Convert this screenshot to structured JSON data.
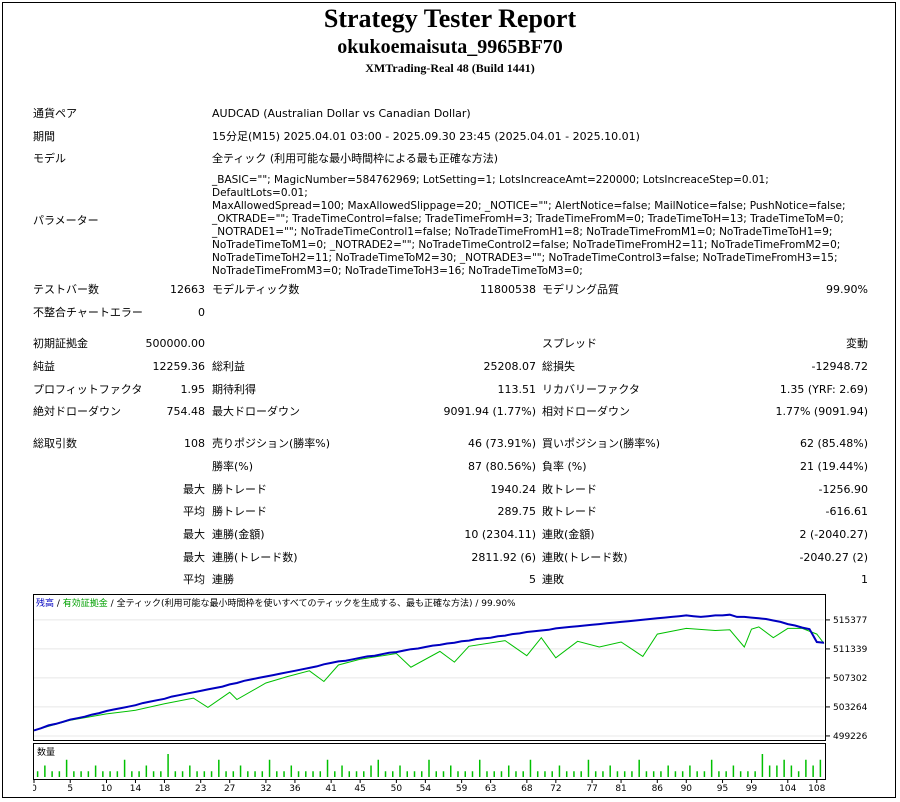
{
  "header": {
    "title": "Strategy Tester Report",
    "account": "okukoemaisuta_9965BF70",
    "server": "XMTrading-Real 48 (Build 1441)"
  },
  "info": {
    "pair_label": "通貨ペア",
    "pair_value": "AUDCAD (Australian Dollar vs Canadian Dollar)",
    "period_label": "期間",
    "period_value": "15分足(M15) 2025.04.01 03:00 - 2025.09.30 23:45 (2025.04.01 - 2025.10.01)",
    "model_label": "モデル",
    "model_value": "全ティック (利用可能な最小時間枠による最も正確な方法)",
    "params_label": "パラメーター",
    "params_value": "_BASIC=\"\"; MagicNumber=584762969; LotSetting=1; LotsIncreaceAmt=220000; LotsIncreaceStep=0.01; DefaultLots=0.01;\nMaxAllowedSpread=100; MaxAllowedSlippage=20; _NOTICE=\"\"; AlertNotice=false; MailNotice=false; PushNotice=false;\n_OKTRADE=\"\"; TradeTimeControl=false; TradeTimeFromH=3; TradeTimeFromM=0; TradeTimeToH=13; TradeTimeToM=0;\n_NOTRADE1=\"\"; NoTradeTimeControl1=false; NoTradeTimeFromH1=8; NoTradeTimeFromM1=0; NoTradeTimeToH1=9;\nNoTradeTimeToM1=0; _NOTRADE2=\"\"; NoTradeTimeControl2=false; NoTradeTimeFromH2=11; NoTradeTimeFromM2=0;\nNoTradeTimeToH2=11; NoTradeTimeToM2=30; _NOTRADE3=\"\"; NoTradeTimeControl3=false; NoTradeTimeFromH3=15;\nNoTradeTimeFromM3=0; NoTradeTimeToH3=16; NoTradeTimeToM3=0;"
  },
  "stats": {
    "bars_label": "テストバー数",
    "bars_value": "12663",
    "ticks_label": "モデルティック数",
    "ticks_value": "11800538",
    "quality_label": "モデリング品質",
    "quality_value": "99.90%",
    "mismatch_label": "不整合チャートエラー",
    "mismatch_value": "0",
    "deposit_label": "初期証拠金",
    "deposit_value": "500000.00",
    "spread_label": "スプレッド",
    "spread_value": "変動",
    "net_label": "純益",
    "net_value": "12259.36",
    "gross_profit_label": "総利益",
    "gross_profit_value": "25208.07",
    "gross_loss_label": "総損失",
    "gross_loss_value": "-12948.72",
    "pf_label": "プロフィットファクタ",
    "pf_value": "1.95",
    "expected_label": "期待利得",
    "expected_value": "113.51",
    "recovery_label": "リカバリーファクタ",
    "recovery_value": "1.35 (YRF: 2.69)",
    "abs_dd_label": "絶対ドローダウン",
    "abs_dd_value": "754.48",
    "max_dd_label": "最大ドローダウン",
    "max_dd_value": "9091.94 (1.77%)",
    "rel_dd_label": "相対ドローダウン",
    "rel_dd_value": "1.77% (9091.94)",
    "total_trades_label": "総取引数",
    "total_trades_value": "108",
    "short_label": "売りポジション(勝率%)",
    "short_value": "46 (73.91%)",
    "long_label": "買いポジション(勝率%)",
    "long_value": "62 (85.48%)",
    "win_label": "勝率(%)",
    "win_value": "87 (80.56%)",
    "loss_label": "負率 (%)",
    "loss_value": "21 (19.44%)",
    "max_label": "最大",
    "avg_label": "平均",
    "largest_win_label": "勝トレード",
    "largest_win_value": "1940.24",
    "largest_loss_label": "敗トレード",
    "largest_loss_value": "-1256.90",
    "avg_win_label": "勝トレード",
    "avg_win_value": "289.75",
    "avg_loss_label": "敗トレード",
    "avg_loss_value": "-616.61",
    "max_consec_win_label": "連勝(金額)",
    "max_consec_win_value": "10 (2304.11)",
    "max_consec_loss_label": "連敗(金額)",
    "max_consec_loss_value": "2 (-2040.27)",
    "max_consec_profit_label": "連勝(トレード数)",
    "max_consec_profit_value": "2811.92 (6)",
    "max_consec_lossamt_label": "連敗(トレード数)",
    "max_consec_lossamt_value": "-2040.27 (2)",
    "avg_consec_win_label": "連勝",
    "avg_consec_win_value": "5",
    "avg_consec_loss_label": "連敗",
    "avg_consec_loss_value": "1"
  },
  "chart_data": {
    "type": "line",
    "legend": {
      "balance": "残高",
      "sep1": " / ",
      "equity": "有効証拠金",
      "sep2": " / ",
      "model": "全ティック(利用可能な最小時間枠を使いすべてのティックを生成する、最も正確な方法)",
      "sep3": " / ",
      "quality": "99.90%"
    },
    "volume_label": "数量",
    "y_ticks": [
      515377,
      511339,
      507302,
      503264,
      499226
    ],
    "ylim": [
      498800,
      516200
    ],
    "x_ticks": [
      0,
      5,
      10,
      14,
      18,
      23,
      27,
      32,
      36,
      41,
      45,
      50,
      54,
      59,
      63,
      68,
      72,
      77,
      81,
      86,
      90,
      95,
      99,
      104,
      108
    ],
    "xlim": [
      0,
      109
    ],
    "colors": {
      "balance": "#0000c0",
      "equity": "#00c000",
      "volume": "#00c000"
    },
    "series": [
      {
        "name": "残高",
        "x": [
          0,
          1,
          2,
          3,
          4,
          5,
          6,
          7,
          8,
          9,
          10,
          11,
          12,
          13,
          14,
          15,
          16,
          17,
          18,
          19,
          20,
          21,
          22,
          23,
          24,
          25,
          26,
          27,
          28,
          29,
          30,
          31,
          32,
          33,
          34,
          35,
          36,
          37,
          38,
          39,
          40,
          41,
          42,
          43,
          44,
          45,
          46,
          47,
          48,
          49,
          50,
          51,
          52,
          53,
          54,
          55,
          56,
          57,
          58,
          59,
          60,
          61,
          62,
          63,
          64,
          65,
          66,
          67,
          68,
          69,
          70,
          71,
          72,
          73,
          74,
          75,
          76,
          77,
          78,
          79,
          80,
          81,
          82,
          83,
          84,
          85,
          86,
          87,
          88,
          89,
          90,
          91,
          92,
          93,
          94,
          95,
          96,
          97,
          98,
          99,
          100,
          101,
          102,
          103,
          104,
          105,
          106,
          107,
          108,
          109
        ],
        "values": [
          500000,
          500300,
          500700,
          500900,
          501200,
          501500,
          501700,
          501900,
          502200,
          502400,
          502700,
          502900,
          503100,
          503300,
          503500,
          503800,
          504000,
          504200,
          504400,
          504700,
          504900,
          505100,
          505300,
          505500,
          505700,
          505900,
          506100,
          506400,
          506600,
          506900,
          507100,
          507300,
          507500,
          507700,
          507900,
          508100,
          508300,
          508500,
          508700,
          508900,
          509200,
          509400,
          509600,
          509700,
          509900,
          510100,
          510300,
          510400,
          510600,
          510800,
          510900,
          511100,
          511300,
          511400,
          511600,
          511800,
          511900,
          512100,
          512200,
          512400,
          512500,
          512700,
          512800,
          512900,
          513100,
          513200,
          513400,
          513500,
          513700,
          513800,
          513900,
          514000,
          514200,
          514300,
          514400,
          514500,
          514600,
          514700,
          514800,
          514900,
          515000,
          515100,
          515200,
          515300,
          515400,
          515500,
          515600,
          515700,
          515800,
          515900,
          516000,
          515900,
          515800,
          515900,
          516000,
          516000,
          516100,
          515800,
          515800,
          515700,
          515600,
          515500,
          515300,
          515100,
          514800,
          514600,
          514300,
          514100,
          512300,
          512200
        ]
      },
      {
        "name": "有効証拠金",
        "x": [
          0,
          5,
          10,
          14,
          18,
          22,
          24,
          27,
          28,
          32,
          35,
          38,
          40,
          42,
          45,
          50,
          52,
          56,
          58,
          60,
          65,
          68,
          70,
          72,
          75,
          78,
          81,
          84,
          86,
          90,
          94,
          96,
          98,
          99,
          100,
          102,
          104,
          106,
          108,
          109
        ],
        "values": [
          500000,
          501400,
          502300,
          502800,
          503700,
          504500,
          503200,
          505300,
          504300,
          506600,
          507500,
          508300,
          506800,
          509100,
          509900,
          510700,
          508800,
          511000,
          509500,
          511700,
          512500,
          510400,
          512900,
          510100,
          512400,
          511600,
          512300,
          510300,
          513400,
          514200,
          513900,
          514000,
          511600,
          514100,
          514400,
          512900,
          514200,
          514200,
          513400,
          512100
        ]
      }
    ],
    "volume": [
      1,
      2,
      1,
      1,
      3,
      1,
      1,
      1,
      2,
      1,
      1,
      1,
      3,
      1,
      1,
      2,
      1,
      1,
      4,
      1,
      1,
      2,
      1,
      1,
      1,
      3,
      1,
      1,
      2,
      1,
      1,
      1,
      3,
      1,
      1,
      2,
      1,
      1,
      1,
      1,
      3,
      1,
      2,
      1,
      1,
      1,
      2,
      3,
      1,
      1,
      2,
      1,
      1,
      1,
      3,
      1,
      1,
      2,
      1,
      1,
      1,
      3,
      1,
      1,
      1,
      2,
      1,
      1,
      3,
      1,
      1,
      1,
      2,
      1,
      1,
      1,
      3,
      1,
      1,
      2,
      1,
      1,
      1,
      3,
      1,
      1,
      1,
      2,
      1,
      1,
      2,
      1,
      1,
      3,
      1,
      1,
      2,
      1,
      1,
      1,
      4,
      2,
      2,
      3,
      2,
      1,
      3,
      2,
      3
    ]
  }
}
